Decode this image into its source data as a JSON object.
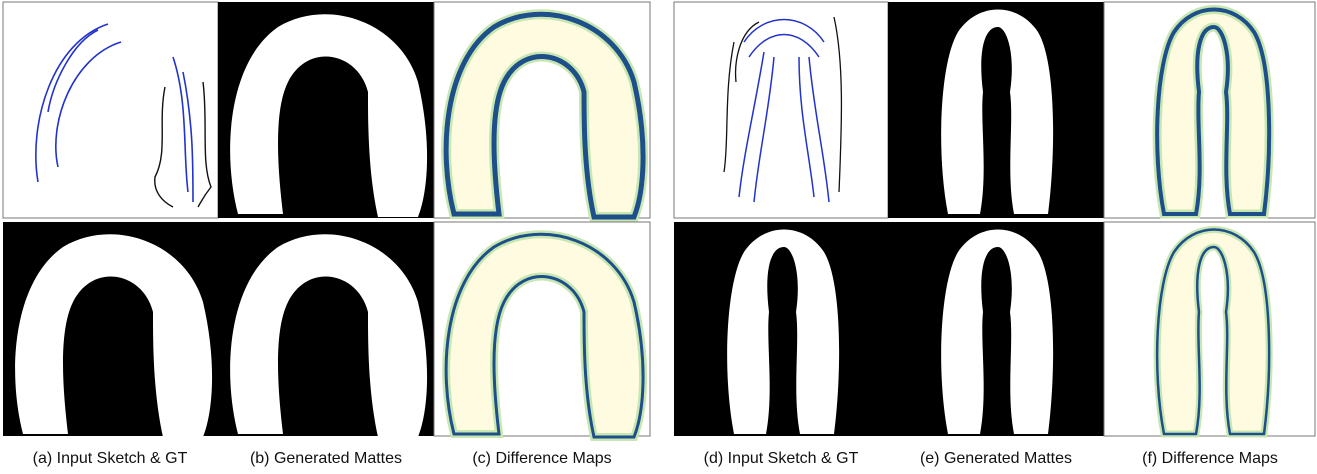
{
  "captions": [
    "(a) Input Sketch & GT",
    "(b) Generated Mattes",
    "(c) Difference Maps",
    "(d) Input Sketch & GT",
    "(e) Generated Mattes",
    "(f) Difference Maps"
  ]
}
